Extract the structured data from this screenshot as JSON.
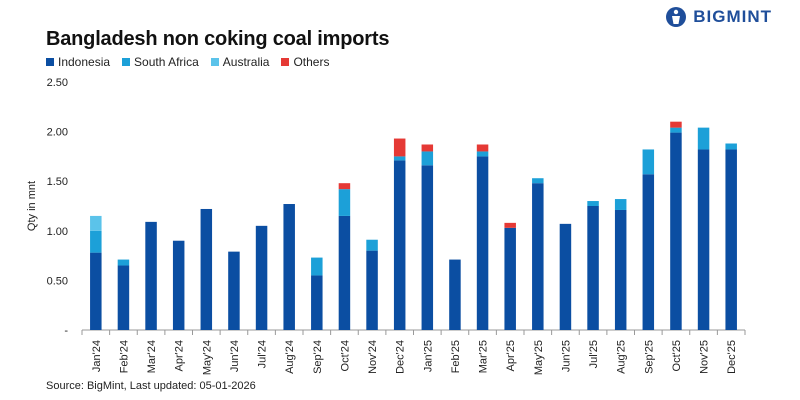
{
  "brand": {
    "name": "BIGMINT",
    "color": "#1f4e9a"
  },
  "source_text": "Source: BigMint, Last updated: 05-01-2026",
  "chart_data": {
    "type": "bar",
    "stacked": true,
    "title": "Bangladesh non coking coal imports",
    "xlabel": "",
    "ylabel": "Qty in mnt",
    "ylim": [
      0,
      2.5
    ],
    "yticks": [
      0,
      0.5,
      1.0,
      1.5,
      2.0,
      2.5
    ],
    "ytick_labels": [
      "-",
      "0.50",
      "1.00",
      "1.50",
      "2.00",
      "2.50"
    ],
    "grid": false,
    "legend_position": "top-left",
    "categories": [
      "Jan'24",
      "Feb'24",
      "Mar'24",
      "Apr'24",
      "May'24",
      "Jun'24",
      "Jul'24",
      "Aug'24",
      "Sep'24",
      "Oct'24",
      "Nov'24",
      "Dec'24",
      "Jan'25",
      "Feb'25",
      "Mar'25",
      "Apr'25",
      "May'25",
      "Jun'25",
      "Jul'25",
      "Aug'25",
      "Sep'25",
      "Oct'25",
      "Nov'25",
      "Dec'25"
    ],
    "series": [
      {
        "name": "Indonesia",
        "color": "#0b4ea2",
        "values": [
          0.78,
          0.65,
          1.09,
          0.9,
          1.22,
          0.79,
          1.05,
          1.27,
          0.55,
          1.15,
          0.8,
          1.71,
          1.66,
          0.71,
          1.75,
          1.03,
          1.48,
          1.07,
          1.25,
          1.21,
          1.57,
          1.99,
          1.82,
          1.82
        ]
      },
      {
        "name": "South Africa",
        "color": "#1ca0d8",
        "values": [
          0.22,
          0.06,
          0,
          0,
          0,
          0,
          0,
          0,
          0.18,
          0.27,
          0.11,
          0.04,
          0.14,
          0,
          0.05,
          0,
          0.05,
          0,
          0.05,
          0.11,
          0.25,
          0.05,
          0.22,
          0.06
        ]
      },
      {
        "name": "Australia",
        "color": "#5bc3ea",
        "values": [
          0.15,
          0,
          0,
          0,
          0,
          0,
          0,
          0,
          0,
          0,
          0,
          0,
          0,
          0,
          0,
          0,
          0,
          0,
          0,
          0,
          0,
          0,
          0,
          0
        ]
      },
      {
        "name": "Others",
        "color": "#e53935",
        "values": [
          0,
          0,
          0,
          0,
          0,
          0,
          0,
          0,
          0,
          0.06,
          0,
          0.18,
          0.07,
          0,
          0.07,
          0.05,
          0,
          0,
          0,
          0,
          0,
          0.06,
          0,
          0
        ]
      }
    ]
  }
}
